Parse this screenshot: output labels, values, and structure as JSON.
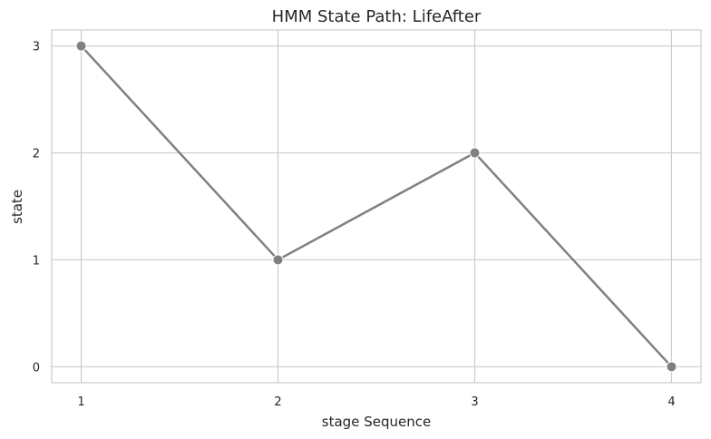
{
  "chart_data": {
    "type": "line",
    "title": "HMM State Path: LifeAfter",
    "xlabel": "stage Sequence",
    "ylabel": "state",
    "x": [
      1,
      2,
      3,
      4
    ],
    "series": [
      {
        "values": [
          3,
          1,
          2,
          0
        ]
      }
    ],
    "xticks": [
      "1",
      "2",
      "3",
      "4"
    ],
    "yticks": [
      "0",
      "1",
      "2",
      "3"
    ],
    "xlim": [
      0.85,
      4.15
    ],
    "ylim": [
      -0.15,
      3.15
    ],
    "grid": true,
    "line_color": "#808080",
    "marker_color": "#808080"
  }
}
